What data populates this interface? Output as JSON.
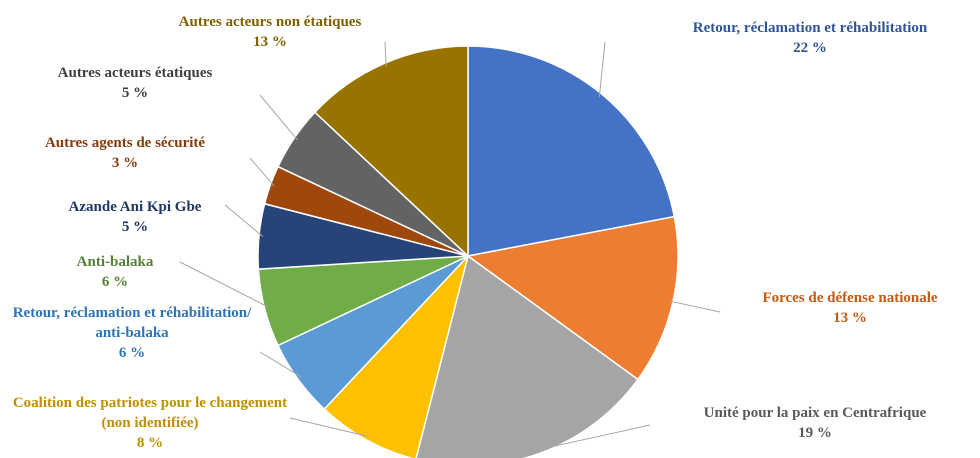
{
  "chart_data": {
    "type": "pie",
    "categories": [
      "Retour, réclamation et réhabilitation",
      "Forces de défense nationale",
      "Unité pour la paix en Centrafrique",
      "Coalition des patriotes pour le changement (non identifiée)",
      "Retour, réclamation et réhabilitation/ anti-balaka",
      "Anti-balaka",
      "Azande Ani Kpi Gbe",
      "Autres agents de sécurité",
      "Autres acteurs étatiques",
      "Autres acteurs non étatiques"
    ],
    "values": [
      22,
      13,
      19,
      8,
      6,
      6,
      5,
      3,
      5,
      13
    ],
    "value_labels": [
      "22 %",
      "13 %",
      "19 %",
      "8 %",
      "6 %",
      "6 %",
      "5 %",
      "3 %",
      "5 %",
      "13 %"
    ],
    "colors": [
      "#4472c4",
      "#ed7d31",
      "#a5a5a5",
      "#ffc000",
      "#5b9bd5",
      "#70ad47",
      "#264478",
      "#9e480e",
      "#636363",
      "#997300"
    ],
    "label_colors": [
      "#2f5597",
      "#c55a11",
      "#595959",
      "#bf9000",
      "#2e75b6",
      "#548235",
      "#203864",
      "#843c0c",
      "#404040",
      "#7f6000"
    ]
  }
}
